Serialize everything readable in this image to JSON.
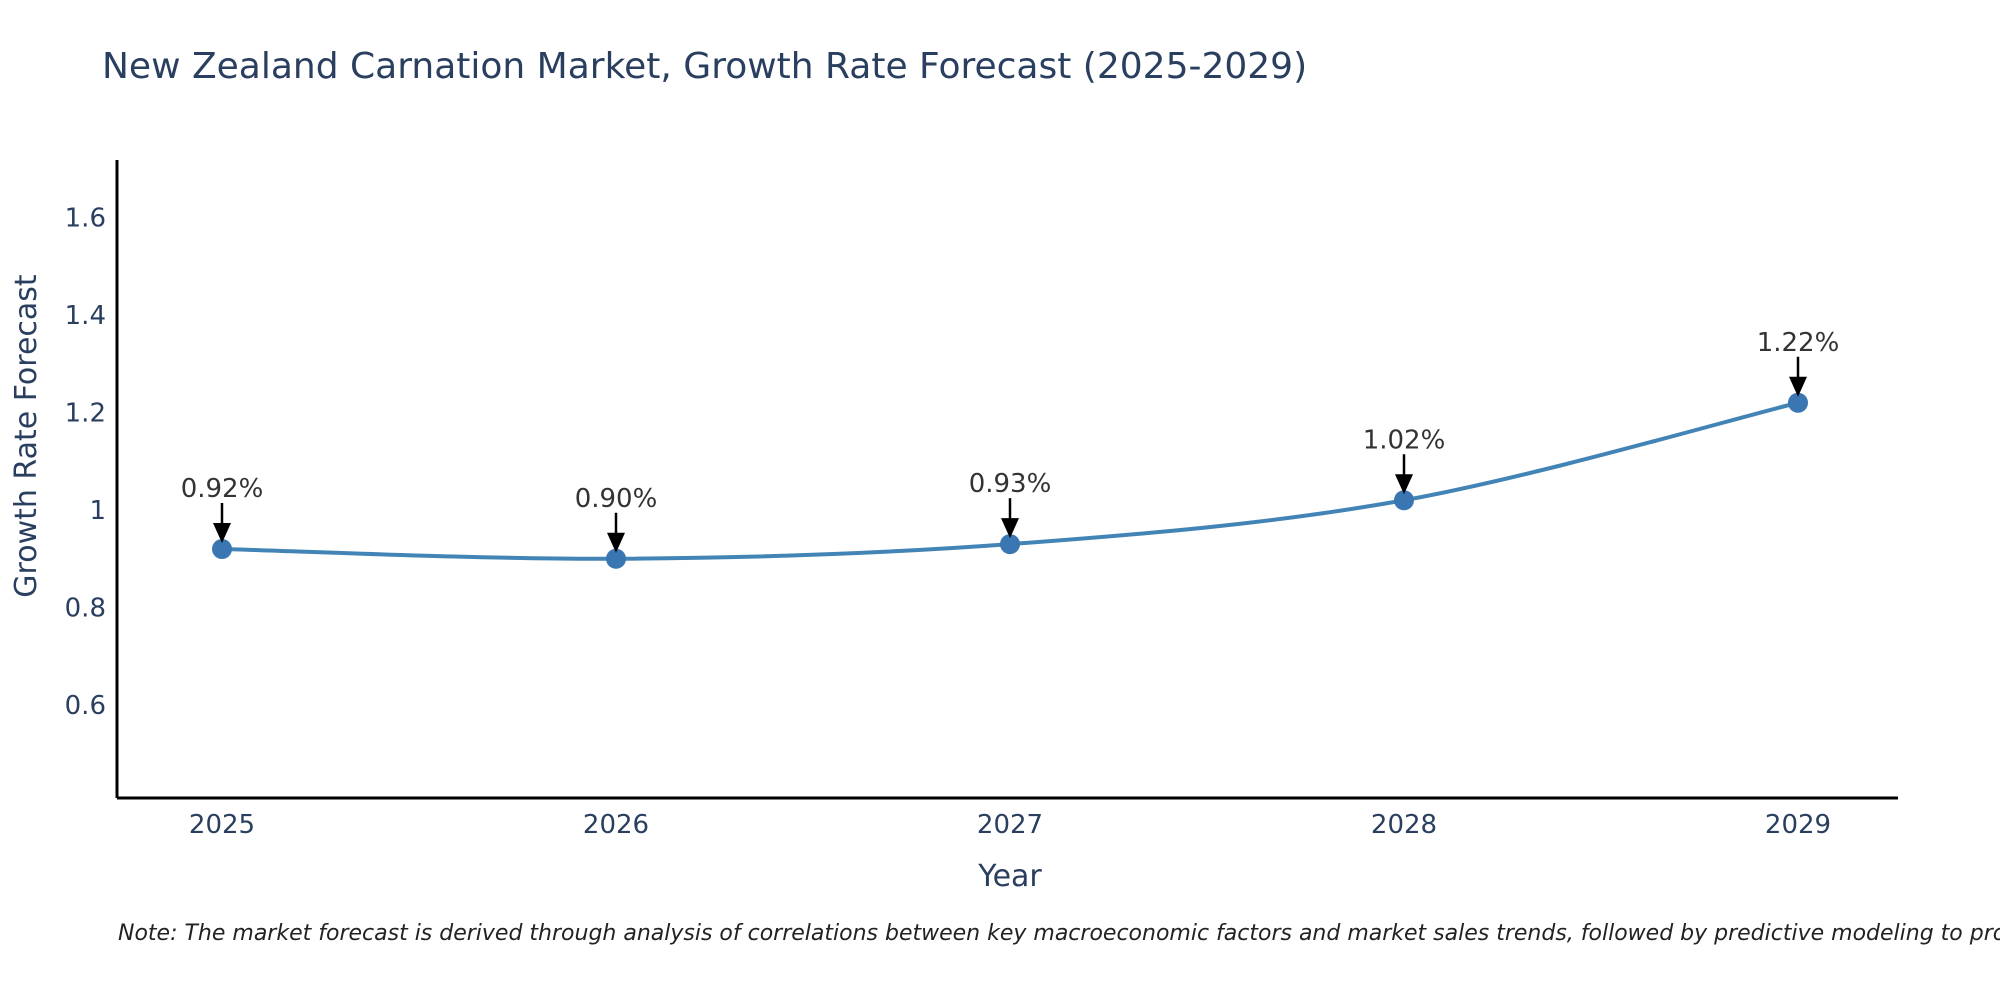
{
  "chart_data": {
    "type": "line",
    "title": "New Zealand Carnation Market, Growth Rate Forecast (2025-2029)",
    "xlabel": "Year",
    "ylabel": "Growth Rate Forecast",
    "categories": [
      "2025",
      "2026",
      "2027",
      "2028",
      "2029"
    ],
    "series": [
      {
        "name": "Growth Rate Forecast",
        "values": [
          0.92,
          0.9,
          0.93,
          1.02,
          1.22
        ],
        "point_labels": [
          "0.92%",
          "0.90%",
          "0.93%",
          "1.02%",
          "1.22%"
        ]
      }
    ],
    "y_ticks": [
      {
        "v": 0.6,
        "label": "0.6"
      },
      {
        "v": 0.8,
        "label": "0.8"
      },
      {
        "v": 1.0,
        "label": "1"
      },
      {
        "v": 1.2,
        "label": "1.2"
      },
      {
        "v": 1.4,
        "label": "1.4"
      },
      {
        "v": 1.6,
        "label": "1.6"
      }
    ],
    "ylim": [
      0.41,
      1.72
    ],
    "grid": false,
    "legend": "none",
    "colors": {
      "line": "#4384b6",
      "marker": "#3a77b2",
      "axis": "#000000",
      "axis_text": "#2a3f5f",
      "annotation_arrow": "#000000"
    },
    "note": "Note: The market forecast is derived through analysis of correlations between key macroeconomic factors and market sales trends, followed by predictive modeling to project future sales"
  }
}
